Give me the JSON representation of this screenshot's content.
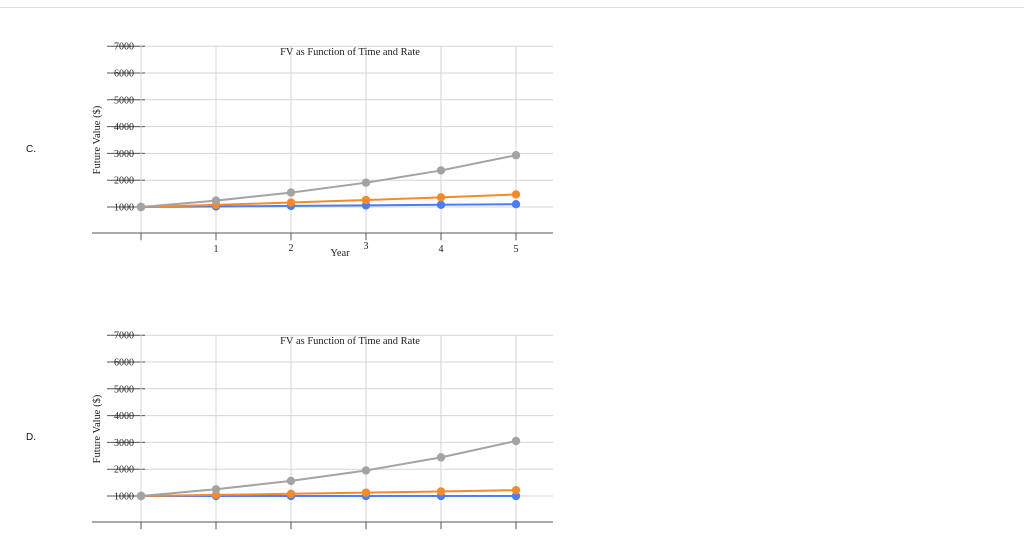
{
  "options": [
    {
      "label": "C.",
      "chart_data": {
        "type": "line",
        "title": "FV as Function of Time and Rate",
        "xlabel": "Year",
        "ylabel": "Future Value ($)",
        "x": [
          0,
          1,
          2,
          3,
          4,
          5
        ],
        "x_tick_labels": [
          "1",
          "2",
          "3",
          "4",
          "5"
        ],
        "y_ticks": [
          1000,
          2000,
          3000,
          4000,
          5000,
          6000,
          7000
        ],
        "ylim": [
          0,
          7000
        ],
        "grid": true,
        "series": [
          {
            "color": "#4a7ef5",
            "values": [
              1000,
              1020,
              1040,
              1061,
              1082,
              1104
            ]
          },
          {
            "color": "#f58a2a",
            "values": [
              1000,
              1080,
              1166,
              1260,
              1360,
              1469
            ]
          },
          {
            "color": "#a3a3a3",
            "values": [
              1000,
              1240,
              1538,
              1907,
              2364,
              2932
            ]
          }
        ]
      }
    },
    {
      "label": "D.",
      "chart_data": {
        "type": "line",
        "title": "FV as Function of Time and Rate",
        "xlabel": "",
        "ylabel": "Future Value ($)",
        "x": [
          0,
          1,
          2,
          3,
          4,
          5
        ],
        "x_tick_labels": [],
        "y_ticks": [
          1000,
          2000,
          3000,
          4000,
          5000,
          6000,
          7000
        ],
        "ylim": [
          0,
          7000
        ],
        "grid": true,
        "series": [
          {
            "color": "#4a7ef5",
            "values": [
              1000,
              1000,
              1000,
              1000,
              1000,
              1000
            ]
          },
          {
            "color": "#f58a2a",
            "values": [
              1000,
              1040,
              1082,
              1125,
              1170,
              1217
            ]
          },
          {
            "color": "#a3a3a3",
            "values": [
              1000,
              1250,
              1563,
              1953,
              2441,
              3052
            ]
          }
        ]
      }
    }
  ]
}
